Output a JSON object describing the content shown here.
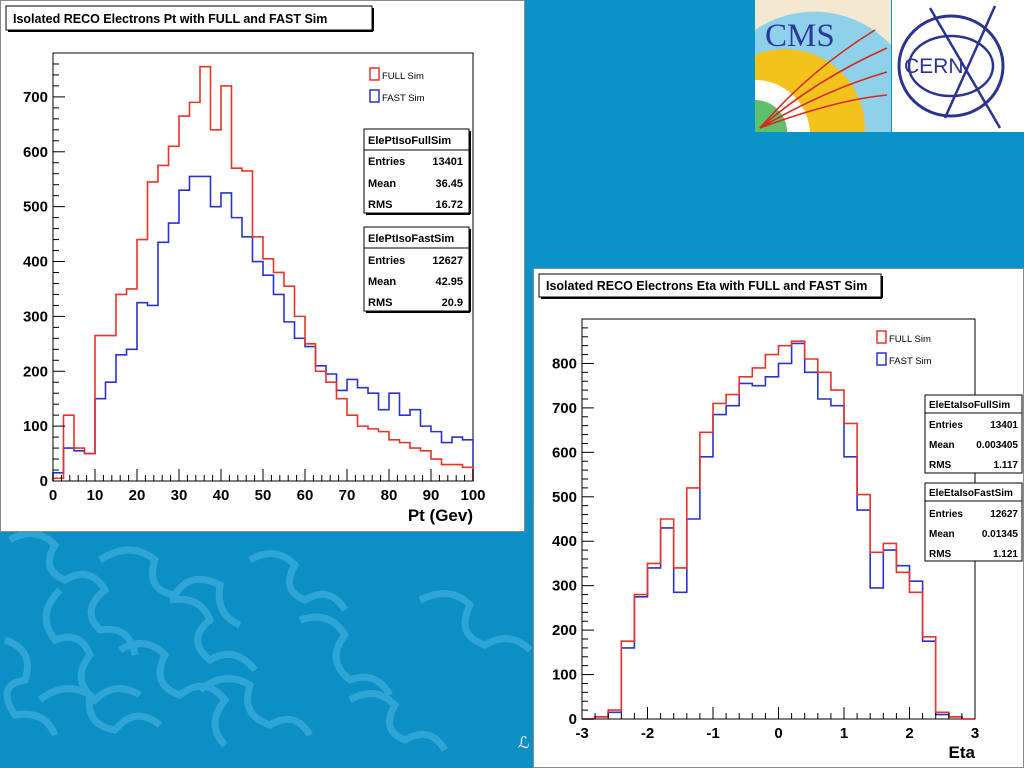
{
  "colors": {
    "background": "#0a93c8",
    "full": "#e8342a",
    "fast": "#2a33cc"
  },
  "logos": {
    "cms_text": "CMS",
    "cern_text": "CERN"
  },
  "footer_glyph": "ℒ",
  "chart_data": [
    {
      "type": "histogram",
      "title": "Isolated RECO Electrons Pt with FULL and FAST Sim",
      "xlabel": "Pt (Gev)",
      "ylabel": "",
      "xlim": [
        0,
        100
      ],
      "ylim": [
        0,
        780
      ],
      "bin_width": 2.5,
      "xticks": [
        0,
        10,
        20,
        30,
        40,
        50,
        60,
        70,
        80,
        90,
        100
      ],
      "yticks": [
        0,
        100,
        200,
        300,
        400,
        500,
        600,
        700
      ],
      "legend": [
        {
          "name": "FULL Sim",
          "color": "#e8342a"
        },
        {
          "name": "FAST Sim",
          "color": "#2a33cc"
        }
      ],
      "series": [
        {
          "name": "FULL Sim",
          "color": "#e8342a",
          "x_start": 0,
          "bin_width": 2.5,
          "values": [
            5,
            120,
            60,
            50,
            265,
            265,
            340,
            350,
            440,
            545,
            575,
            610,
            665,
            690,
            755,
            640,
            720,
            570,
            565,
            445,
            405,
            380,
            355,
            300,
            250,
            200,
            180,
            150,
            120,
            100,
            95,
            90,
            75,
            70,
            60,
            55,
            40,
            30,
            30,
            25
          ]
        },
        {
          "name": "FAST Sim",
          "color": "#2a33cc",
          "x_start": 0,
          "bin_width": 2.5,
          "values": [
            15,
            60,
            55,
            50,
            150,
            180,
            230,
            240,
            325,
            320,
            435,
            470,
            530,
            555,
            555,
            500,
            525,
            480,
            445,
            400,
            375,
            340,
            290,
            260,
            245,
            210,
            195,
            165,
            185,
            170,
            160,
            130,
            160,
            120,
            130,
            100,
            90,
            70,
            80,
            75
          ]
        }
      ],
      "stats": [
        {
          "name": "ElePtIsoFullSim",
          "entries": "13401",
          "mean": "36.45",
          "rms": "16.72"
        },
        {
          "name": "ElePtIsoFastSim",
          "entries": "12627",
          "mean": "42.95",
          "rms": "20.9"
        }
      ],
      "stat_labels": {
        "entries": "Entries",
        "mean": "Mean",
        "rms": "RMS"
      }
    },
    {
      "type": "histogram",
      "title": "Isolated RECO Electrons Eta with FULL and FAST Sim",
      "xlabel": "Eta",
      "ylabel": "",
      "xlim": [
        -3,
        3
      ],
      "ylim": [
        0,
        900
      ],
      "bin_width": 0.2,
      "xticks": [
        -3,
        -2,
        -1,
        0,
        1,
        2,
        3
      ],
      "yticks": [
        0,
        100,
        200,
        300,
        400,
        500,
        600,
        700,
        800
      ],
      "legend": [
        {
          "name": "FULL Sim",
          "color": "#e8342a"
        },
        {
          "name": "FAST Sim",
          "color": "#2a33cc"
        }
      ],
      "series": [
        {
          "name": "FULL Sim",
          "color": "#e8342a",
          "x_start": -3,
          "bin_width": 0.2,
          "values": [
            0,
            5,
            20,
            175,
            280,
            350,
            450,
            340,
            520,
            645,
            710,
            730,
            770,
            790,
            820,
            840,
            850,
            810,
            780,
            740,
            665,
            505,
            375,
            395,
            330,
            285,
            185,
            15,
            5,
            0
          ]
        },
        {
          "name": "FAST Sim",
          "color": "#2a33cc",
          "x_start": -3,
          "bin_width": 0.2,
          "values": [
            0,
            5,
            15,
            160,
            275,
            340,
            430,
            285,
            450,
            590,
            685,
            705,
            755,
            750,
            770,
            800,
            845,
            780,
            720,
            705,
            590,
            470,
            295,
            380,
            345,
            310,
            175,
            10,
            5,
            0
          ]
        }
      ],
      "stats": [
        {
          "name": "EleEtaIsoFullSim",
          "entries": "13401",
          "mean": "0.003405",
          "rms": "1.117"
        },
        {
          "name": "EleEtaIsoFastSim",
          "entries": "12627",
          "mean": "0.01345",
          "rms": "1.121"
        }
      ],
      "stat_labels": {
        "entries": "Entries",
        "mean": "Mean",
        "rms": "RMS"
      }
    }
  ]
}
